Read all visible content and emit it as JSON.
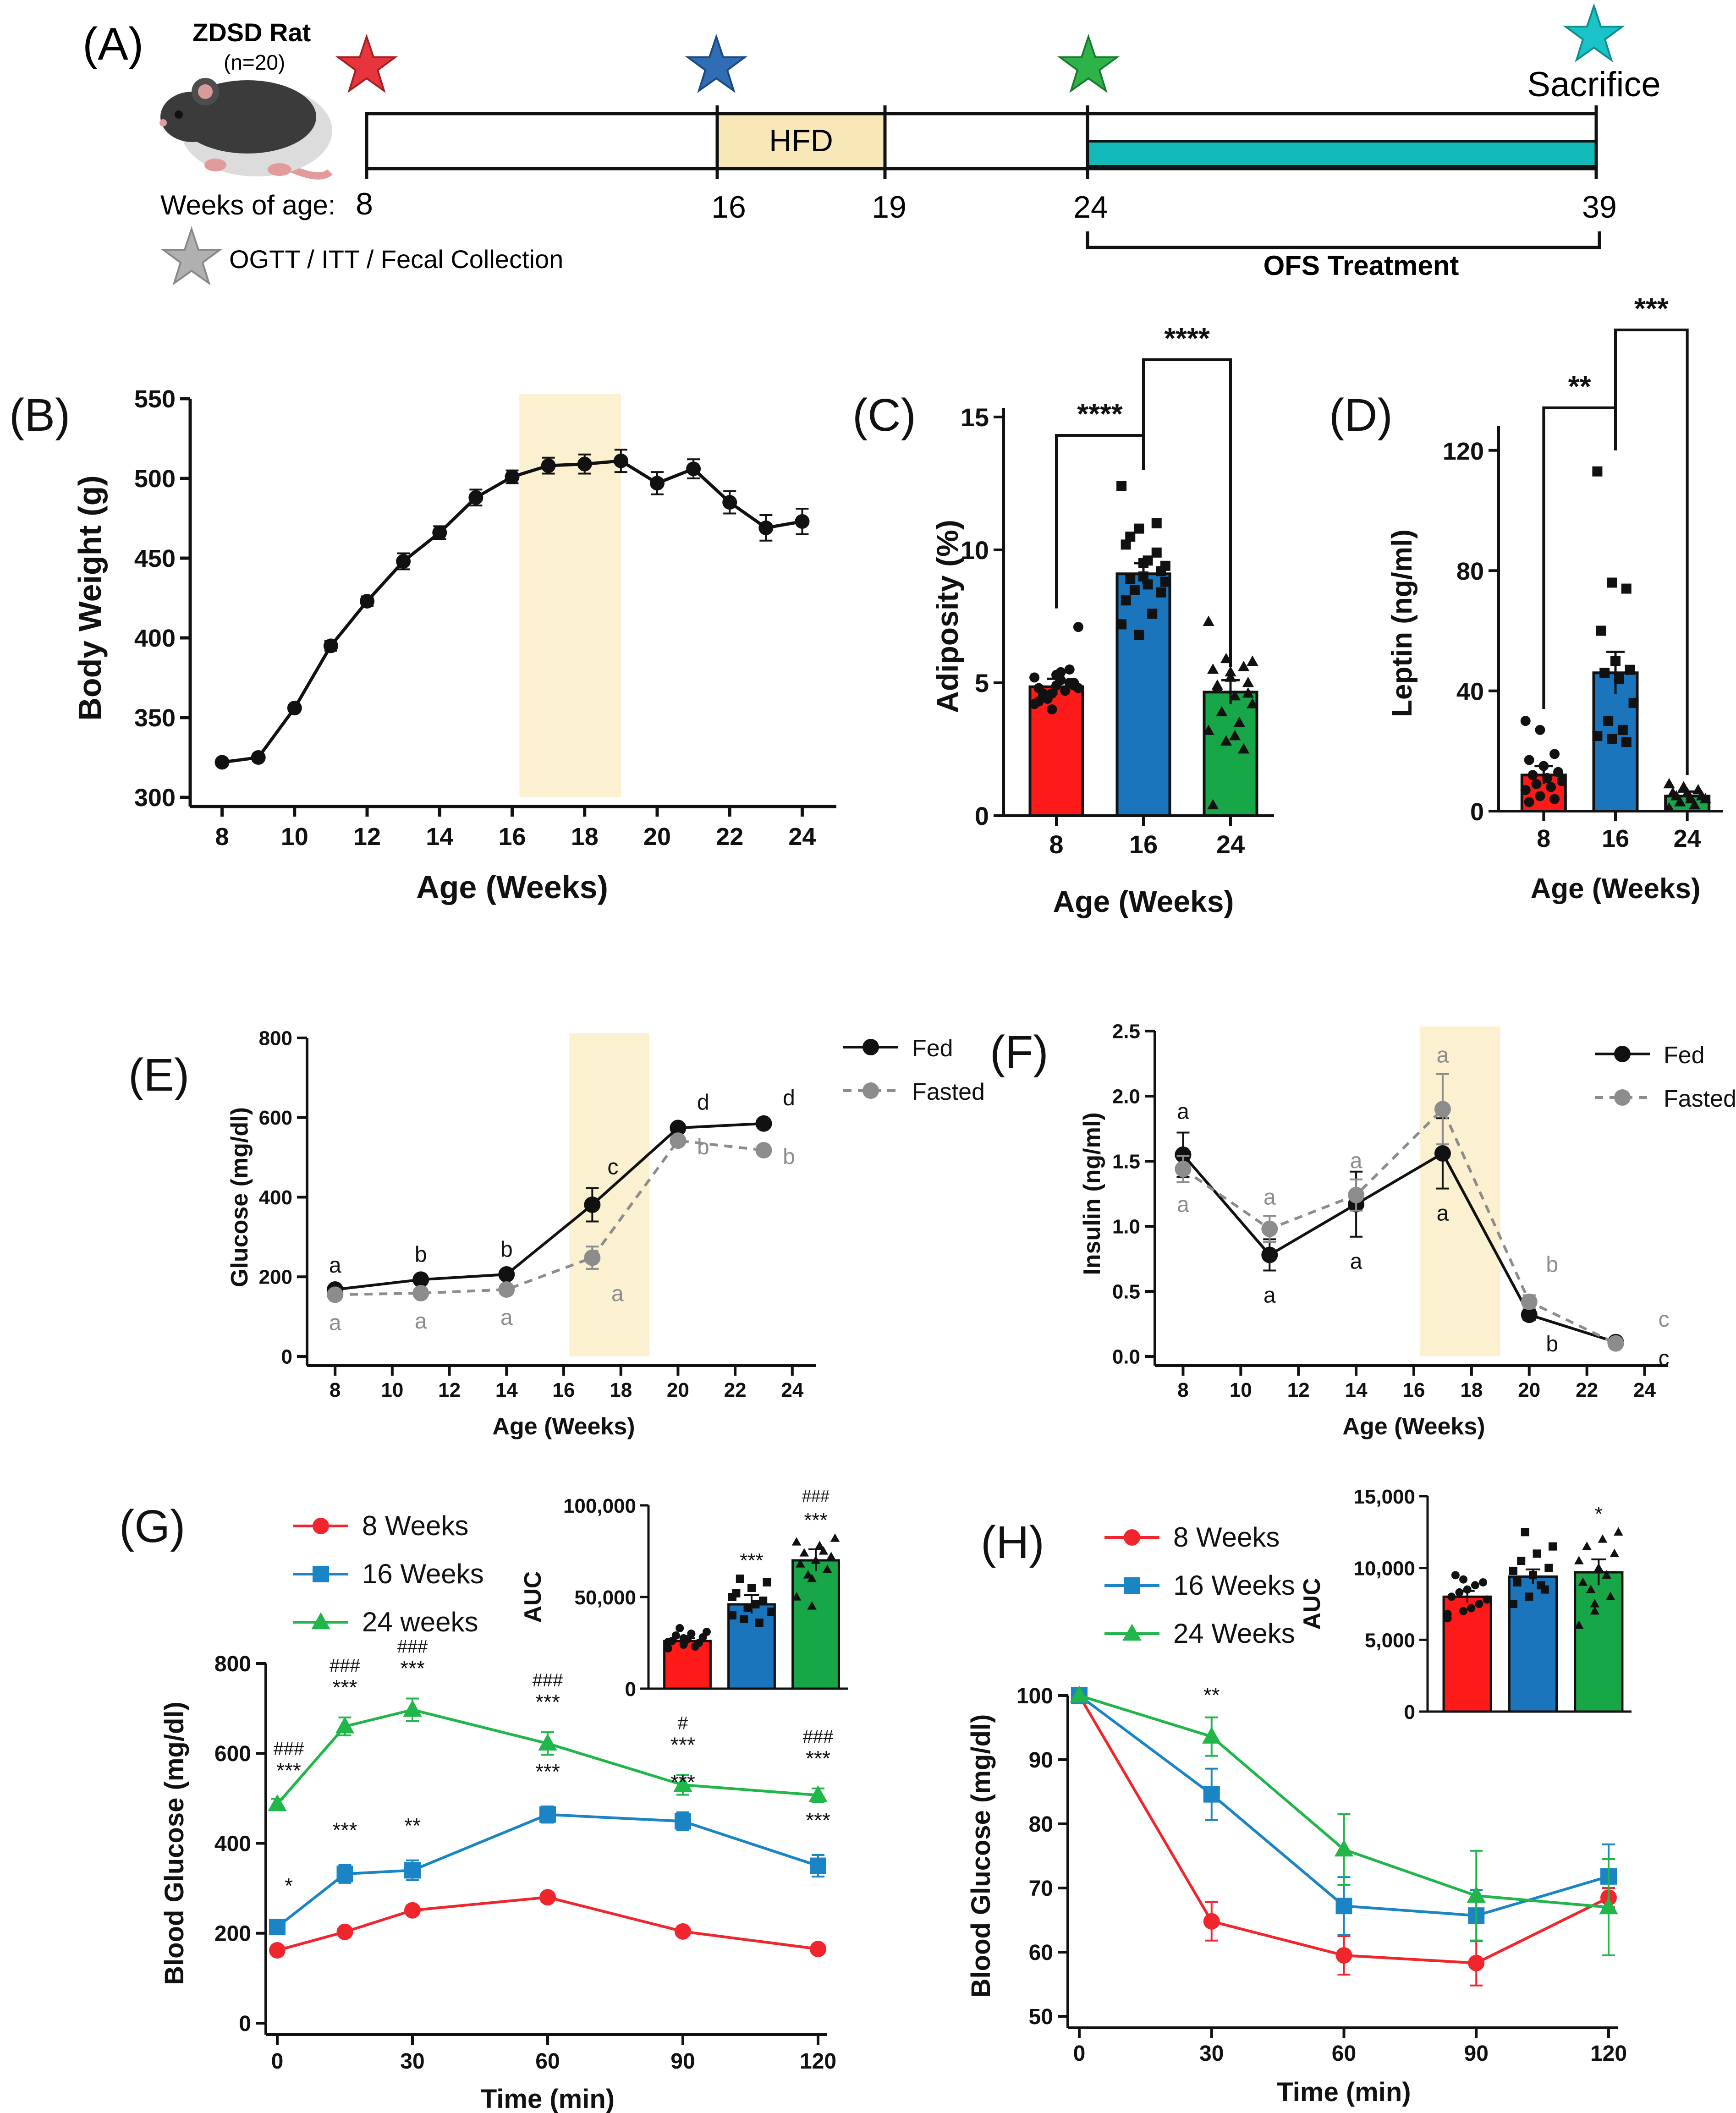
{
  "panelA": {
    "label": "(A)",
    "rat_title": "ZDSD Rat",
    "rat_n": "(n=20)",
    "weeks_prefix": "Weeks of age:",
    "weeks": [
      "8",
      "16",
      "19",
      "24",
      "39"
    ],
    "hfd_label": "HFD",
    "sacrifice_label": "Sacrifice",
    "ofs_label": "OFS Treatment",
    "legend_text": "OGTT / ITT / Fecal Collection",
    "colors": {
      "star8": "#e8353d",
      "star16": "#2f6db5",
      "star24": "#2db34a",
      "star39": "#19c3c8",
      "starLegend": "#b0b0b0",
      "hfd": "#f8e8b8",
      "ofs": "#12b9b9"
    }
  },
  "chart_data": [
    {
      "id": "B",
      "label": "(B)",
      "type": "line",
      "xlabel": "Age (Weeks)",
      "ylabel": "Body Weight (g)",
      "xlim": [
        7.5,
        24.5
      ],
      "ylim": [
        300,
        550
      ],
      "xticks": [
        8,
        10,
        12,
        14,
        16,
        18,
        20,
        22,
        24
      ],
      "yticks": [
        300,
        350,
        400,
        450,
        500,
        550
      ],
      "shade": [
        16.2,
        19
      ],
      "series": [
        {
          "name": "Body Weight",
          "color": "#111111",
          "x": [
            8,
            9,
            10,
            11,
            12,
            13,
            14,
            15,
            16,
            17,
            18,
            19,
            20,
            21,
            22,
            23,
            24
          ],
          "y": [
            322,
            325,
            356,
            395,
            423,
            448,
            466,
            488,
            501,
            508,
            509,
            511,
            497,
            506,
            485,
            469,
            473
          ],
          "err": [
            1,
            1,
            2,
            3,
            3,
            5,
            4,
            5,
            4,
            5,
            6,
            7,
            7,
            6,
            7,
            8,
            8
          ]
        }
      ]
    },
    {
      "id": "C",
      "label": "(C)",
      "type": "bar",
      "xlabel": "Age (Weeks)",
      "ylabel": "Adiposity (%)",
      "categories": [
        "8",
        "16",
        "24"
      ],
      "ylim": [
        0,
        15
      ],
      "yticks": [
        0,
        5,
        10,
        15
      ],
      "values": [
        4.85,
        9.1,
        4.65
      ],
      "err": [
        0.3,
        0.4,
        0.45
      ],
      "colors": [
        "#ff1a1a",
        "#1b75bc",
        "#18a748"
      ],
      "markers": [
        "circle",
        "square",
        "triangle"
      ],
      "points": [
        [
          4.2,
          4.6,
          5.0,
          4.8,
          5.3,
          4.9,
          4.5,
          5.1,
          7.1,
          4.4,
          4.7,
          5.2,
          4.0,
          5.5,
          4.3,
          4.9,
          5.0,
          4.6,
          5.4,
          4.8
        ],
        [
          12.4,
          10.8,
          11.0,
          10.2,
          9.5,
          9.2,
          8.9,
          8.7,
          9.4,
          8.5,
          7.6,
          7.2,
          6.8,
          9.9,
          8.1,
          9.0,
          8.4,
          10.5,
          9.6,
          8.8
        ],
        [
          7.3,
          5.9,
          5.6,
          5.5,
          5.2,
          5.0,
          4.8,
          4.5,
          4.2,
          3.9,
          3.5,
          3.2,
          2.8,
          2.5,
          0.4,
          5.4,
          4.6,
          4.9,
          3.0,
          5.8
        ]
      ],
      "sig": [
        {
          "from": 0,
          "to": 1,
          "label": "****"
        },
        {
          "from": 1,
          "to": 2,
          "label": "****"
        }
      ]
    },
    {
      "id": "D",
      "label": "(D)",
      "type": "bar",
      "xlabel": "Age (Weeks)",
      "ylabel": "Leptin (ng/ml)",
      "categories": [
        "8",
        "16",
        "24"
      ],
      "ylim": [
        0,
        125
      ],
      "yticks": [
        0,
        40,
        80,
        120
      ],
      "values": [
        12,
        46,
        5
      ],
      "err": [
        3,
        7,
        1.5
      ],
      "colors": [
        "#ff1a1a",
        "#1b75bc",
        "#18a748"
      ],
      "markers": [
        "circle",
        "square",
        "triangle"
      ],
      "points": [
        [
          30,
          27,
          19,
          17,
          15,
          13,
          12,
          11,
          10,
          9,
          8,
          7,
          5,
          4,
          3
        ],
        [
          113,
          76,
          74,
          60,
          50,
          47,
          46,
          44,
          36,
          30,
          27,
          25,
          24,
          23
        ],
        [
          9,
          8,
          7,
          6,
          6,
          5,
          5,
          4,
          4,
          3,
          2,
          1
        ]
      ],
      "sig": [
        {
          "from": 0,
          "to": 1,
          "label": "**"
        },
        {
          "from": 1,
          "to": 2,
          "label": "***"
        }
      ]
    },
    {
      "id": "E",
      "label": "(E)",
      "type": "line",
      "xlabel": "Age (Weeks)",
      "ylabel": "Glucose (mg/dl)",
      "xlim": [
        7.5,
        24.5
      ],
      "ylim": [
        0,
        800
      ],
      "xticks": [
        8,
        10,
        12,
        14,
        16,
        18,
        20,
        22,
        24
      ],
      "yticks": [
        0,
        200,
        400,
        600,
        800
      ],
      "shade": [
        16.2,
        19
      ],
      "legend": [
        "Fed",
        "Fasted"
      ],
      "series": [
        {
          "name": "Fed",
          "color": "#111111",
          "dash": false,
          "x": [
            8,
            11,
            14,
            17,
            20,
            23
          ],
          "y": [
            168,
            193,
            206,
            381,
            574,
            585
          ],
          "err": [
            8,
            10,
            10,
            42,
            10,
            10
          ],
          "letters": [
            "a",
            "b",
            "b",
            "c",
            "d",
            "d"
          ]
        },
        {
          "name": "Fasted",
          "color": "#8c8c8c",
          "dash": true,
          "x": [
            8,
            11,
            14,
            17,
            20,
            23
          ],
          "y": [
            155,
            159,
            168,
            248,
            542,
            518
          ],
          "err": [
            8,
            8,
            8,
            28,
            10,
            10
          ],
          "letters": [
            "a",
            "a",
            "a",
            "a",
            "b",
            "b"
          ]
        }
      ]
    },
    {
      "id": "F",
      "label": "(F)",
      "type": "line",
      "xlabel": "Age (Weeks)",
      "ylabel": "Insulin (ng/ml)",
      "xlim": [
        7.5,
        24.5
      ],
      "ylim": [
        0,
        2.5
      ],
      "xticks": [
        8,
        10,
        12,
        14,
        16,
        18,
        20,
        22,
        24
      ],
      "yticks": [
        0.0,
        0.5,
        1.0,
        1.5,
        2.0,
        2.5
      ],
      "ytick_labels": [
        "0.0",
        "0.5",
        "1.0",
        "1.5",
        "2.0",
        "2.5"
      ],
      "shade": [
        16.2,
        19
      ],
      "legend": [
        "Fed",
        "Fasted"
      ],
      "series": [
        {
          "name": "Fed",
          "color": "#111111",
          "dash": false,
          "x": [
            8,
            11,
            14,
            17,
            20,
            23
          ],
          "y": [
            1.55,
            0.78,
            1.17,
            1.56,
            0.32,
            0.11
          ],
          "err": [
            0.17,
            0.12,
            0.25,
            0.27,
            0.04,
            0.02
          ],
          "letters": [
            "a",
            "a",
            "a",
            "a",
            "b",
            "c"
          ]
        },
        {
          "name": "Fasted",
          "color": "#8c8c8c",
          "dash": true,
          "x": [
            8,
            11,
            14,
            17,
            20,
            23
          ],
          "y": [
            1.44,
            0.98,
            1.24,
            1.9,
            0.42,
            0.1
          ],
          "err": [
            0.1,
            0.1,
            0.12,
            0.27,
            0.05,
            0.02
          ],
          "letters": [
            "a",
            "a",
            "a",
            "a",
            "b",
            "c"
          ]
        }
      ]
    },
    {
      "id": "G",
      "label": "(G)",
      "type": "line",
      "xlabel": "Time (min)",
      "ylabel": "Blood Glucose (mg/dl)",
      "xlim": [
        0,
        120
      ],
      "ylim": [
        0,
        800
      ],
      "xticks": [
        0,
        30,
        60,
        90,
        120
      ],
      "yticks": [
        0,
        200,
        400,
        600,
        800
      ],
      "legend": [
        "8 Weeks",
        "16 Weeks",
        "24 weeks"
      ],
      "series": [
        {
          "name": "8 Weeks",
          "color": "#f0262c",
          "marker": "circle",
          "x": [
            0,
            15,
            30,
            60,
            90,
            120
          ],
          "y": [
            162,
            203,
            251,
            280,
            204,
            165
          ],
          "err": [
            6,
            8,
            10,
            10,
            8,
            6
          ]
        },
        {
          "name": "16 Weeks",
          "color": "#1b84c4",
          "marker": "square",
          "x": [
            0,
            15,
            30,
            60,
            90,
            120
          ],
          "y": [
            214,
            332,
            340,
            464,
            449,
            350
          ],
          "err": [
            10,
            20,
            22,
            18,
            20,
            24
          ]
        },
        {
          "name": "24 weeks",
          "color": "#20b64a",
          "marker": "triangle",
          "x": [
            0,
            15,
            30,
            60,
            90,
            120
          ],
          "y": [
            487,
            660,
            697,
            622,
            530,
            507
          ],
          "err": [
            12,
            20,
            25,
            25,
            22,
            15
          ]
        }
      ],
      "annotations": [
        {
          "x": 0,
          "y": 218,
          "text": "*",
          "dy": -70
        },
        {
          "x": 0,
          "y": 495,
          "text": "***",
          "dy": -50
        },
        {
          "x": 0,
          "y": 495,
          "text": "###",
          "dy": -100
        },
        {
          "x": 15,
          "y": 352,
          "text": "***",
          "dy": -60
        },
        {
          "x": 15,
          "y": 680,
          "text": "***",
          "dy": -50
        },
        {
          "x": 15,
          "y": 680,
          "text": "###",
          "dy": -100
        },
        {
          "x": 30,
          "y": 362,
          "text": "**",
          "dy": -60
        },
        {
          "x": 30,
          "y": 722,
          "text": "***",
          "dy": -50
        },
        {
          "x": 30,
          "y": 722,
          "text": "###",
          "dy": -100
        },
        {
          "x": 60,
          "y": 482,
          "text": "***",
          "dy": -60
        },
        {
          "x": 60,
          "y": 647,
          "text": "***",
          "dy": -50
        },
        {
          "x": 60,
          "y": 647,
          "text": "###",
          "dy": -100
        },
        {
          "x": 90,
          "y": 469,
          "text": "***",
          "dy": -50
        },
        {
          "x": 90,
          "y": 552,
          "text": "***",
          "dy": -50
        },
        {
          "x": 90,
          "y": 552,
          "text": "#",
          "dy": -100
        },
        {
          "x": 120,
          "y": 374,
          "text": "***",
          "dy": -60
        },
        {
          "x": 120,
          "y": 522,
          "text": "***",
          "dy": -50
        },
        {
          "x": 120,
          "y": 522,
          "text": "###",
          "dy": -100
        }
      ],
      "inset": {
        "type": "bar",
        "ylabel": "AUC",
        "ylim": [
          0,
          100000
        ],
        "yticks": [
          0,
          50000,
          100000
        ],
        "ytick_labels": [
          "0",
          "50,000",
          "100,000"
        ],
        "values": [
          26000,
          46000,
          70000
        ],
        "err": [
          1500,
          5000,
          6000
        ],
        "colors": [
          "#ff1a1a",
          "#1b75bc",
          "#18a748"
        ],
        "markers": [
          "circle",
          "square",
          "triangle"
        ],
        "points": [
          [
            22000,
            24000,
            25000,
            26000,
            27000,
            28000,
            29000,
            30000,
            31000,
            33000,
            23000,
            25500,
            27500
          ],
          [
            40000,
            44000,
            48000,
            52000,
            55000,
            58000,
            60000,
            46000,
            42000,
            38000,
            36000,
            50000
          ],
          [
            50000,
            60000,
            65000,
            68000,
            70000,
            72000,
            74000,
            78000,
            82000,
            62000,
            75000,
            80000,
            45000
          ]
        ],
        "sig": [
          {
            "bar": 1,
            "text": "***"
          },
          {
            "bar": 2,
            "text": "***"
          },
          {
            "bar": 2,
            "text": "###"
          }
        ]
      }
    },
    {
      "id": "H",
      "label": "(H)",
      "type": "line",
      "xlabel": "Time (min)",
      "ylabel": "Blood Glucose (mg/dl)",
      "xlim": [
        0,
        120
      ],
      "ylim": [
        50,
        100
      ],
      "xticks": [
        0,
        30,
        60,
        90,
        120
      ],
      "yticks": [
        50,
        60,
        70,
        80,
        90,
        100
      ],
      "legend": [
        "8 Weeks",
        "16 Weeks",
        "24 Weeks"
      ],
      "series": [
        {
          "name": "8 Weeks",
          "color": "#f0262c",
          "marker": "circle",
          "x": [
            0,
            30,
            60,
            90,
            120
          ],
          "y": [
            100,
            64.8,
            59.5,
            58.3,
            68.5
          ],
          "err": [
            0,
            3,
            3,
            3.5,
            1.5
          ]
        },
        {
          "name": "16 Weeks",
          "color": "#1b84c4",
          "marker": "square",
          "x": [
            0,
            30,
            60,
            90,
            120
          ],
          "y": [
            100,
            84.6,
            67.2,
            65.7,
            71.8
          ],
          "err": [
            0,
            4,
            4.5,
            4,
            5
          ]
        },
        {
          "name": "24 Weeks",
          "color": "#20b64a",
          "marker": "triangle",
          "x": [
            0,
            30,
            60,
            90,
            120
          ],
          "y": [
            100,
            93.6,
            76,
            68.8,
            67
          ],
          "err": [
            0,
            3,
            5.5,
            7,
            7.5
          ]
        }
      ],
      "annotations": [
        {
          "x": 30,
          "y": 96.8,
          "text": "**",
          "dy": -30
        }
      ],
      "inset": {
        "type": "bar",
        "ylabel": "AUC",
        "ylim": [
          0,
          15000
        ],
        "yticks": [
          0,
          5000,
          10000,
          15000
        ],
        "ytick_labels": [
          "0",
          "5,000",
          "10,000",
          "15,000"
        ],
        "values": [
          8000,
          9400,
          9700
        ],
        "err": [
          400,
          500,
          900
        ],
        "colors": [
          "#ff1a1a",
          "#1b75bc",
          "#18a748"
        ],
        "markers": [
          "circle",
          "square",
          "triangle"
        ],
        "points": [
          [
            6500,
            7000,
            7500,
            8000,
            8500,
            9000,
            9500,
            7200,
            7800,
            8300,
            8800,
            6800,
            9200
          ],
          [
            7500,
            8000,
            8500,
            9000,
            9500,
            10000,
            10500,
            11000,
            11500,
            12500,
            8800,
            9800
          ],
          [
            6000,
            7000,
            8000,
            9000,
            10000,
            11000,
            11500,
            12000,
            12500,
            8500,
            9500,
            10500,
            7500
          ]
        ],
        "sig": [
          {
            "bar": 2,
            "text": "*"
          }
        ]
      }
    }
  ]
}
